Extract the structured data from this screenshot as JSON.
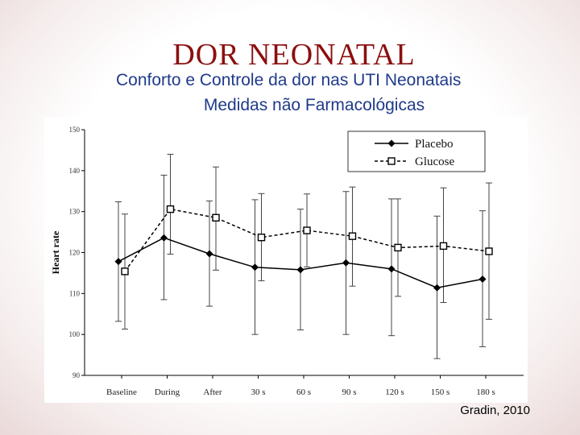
{
  "slide": {
    "title": "DOR NEONATAL",
    "subtitle_1": "Conforto e Controle da dor nas UTI Neonatais",
    "subtitle_2": "Medidas não Farmacológicas",
    "citation": "Gradin, 2010"
  },
  "chart_data": {
    "type": "line",
    "title": "",
    "xlabel": "",
    "ylabel": "Heart rate",
    "ylim": [
      90,
      150
    ],
    "yticks": [
      "90",
      "100",
      "110",
      "120",
      "130",
      "140",
      "150"
    ],
    "categories": [
      "Baseline",
      "During",
      "After",
      "30 s",
      "60 s",
      "90 s",
      "120 s",
      "150 s",
      "180 s"
    ],
    "legend_position": "top-right",
    "grid": false,
    "series": [
      {
        "name": "Placebo",
        "marker": "filled-diamond",
        "line_style": "solid",
        "color": "#000000",
        "values": [
          117.8,
          123.6,
          119.7,
          116.4,
          115.8,
          117.5,
          116.0,
          111.4,
          113.5
        ],
        "error_low": [
          103.2,
          108.5,
          106.9,
          100.0,
          101.1,
          100.0,
          99.7,
          94.1,
          97.0
        ],
        "error_high": [
          132.4,
          138.9,
          132.6,
          132.9,
          130.6,
          134.9,
          133.1,
          128.9,
          130.2
        ]
      },
      {
        "name": "Glucose",
        "marker": "open-square",
        "line_style": "dashed",
        "color": "#000000",
        "values": [
          115.4,
          130.6,
          128.5,
          123.7,
          125.4,
          124.0,
          121.2,
          121.6,
          120.3
        ],
        "error_low": [
          101.3,
          119.6,
          115.7,
          113.1,
          116.5,
          111.8,
          109.3,
          107.8,
          103.7
        ],
        "error_high": [
          129.4,
          144.0,
          140.9,
          134.4,
          134.3,
          136.0,
          133.1,
          135.8,
          137.0
        ]
      }
    ]
  }
}
